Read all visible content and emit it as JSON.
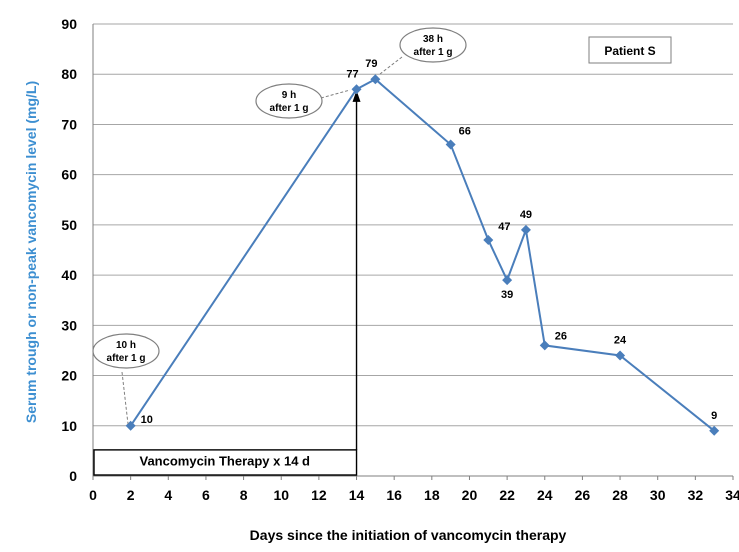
{
  "chart_data": {
    "type": "line",
    "series": [
      {
        "x": [
          2,
          14,
          15,
          19,
          21,
          22,
          23,
          24,
          28,
          33
        ],
        "values": [
          10,
          77,
          79,
          66,
          47,
          39,
          49,
          26,
          24,
          9
        ],
        "data_labels": [
          "10",
          "77",
          "79",
          "66",
          "47",
          "39",
          "49",
          "26",
          "24",
          "9"
        ],
        "color": "#4a7ebb"
      }
    ],
    "xlabel": "Days since the initiation of vancomycin therapy",
    "ylabel": "Serum trough or non-peak vancomycin level (mg/L)",
    "xlim": [
      0,
      34
    ],
    "ylim": [
      0,
      90
    ],
    "x_ticks": [
      "0",
      "2",
      "4",
      "6",
      "8",
      "10",
      "12",
      "14",
      "16",
      "18",
      "20",
      "22",
      "24",
      "26",
      "28",
      "30",
      "32",
      "34"
    ],
    "y_ticks": [
      "0",
      "10",
      "20",
      "30",
      "40",
      "50",
      "60",
      "70",
      "80",
      "90"
    ],
    "grid": "horizontal",
    "legend_box": "Patient S",
    "therapy_box": "Vancomycin Therapy x 14 d",
    "annotations": [
      {
        "line1": "10 h",
        "line2": "after 1 g",
        "x": 2,
        "y": 10
      },
      {
        "line1": "9 h",
        "line2": "after 1 g",
        "x": 14,
        "y": 77
      },
      {
        "line1": "38 h",
        "line2": "after 1 g",
        "x": 15,
        "y": 79
      }
    ],
    "colors": {
      "line": "#4a7ebb",
      "ylabel": "#3d8fd1",
      "grid": "#a6a6a6",
      "callout_border": "#7f7f7f"
    }
  }
}
